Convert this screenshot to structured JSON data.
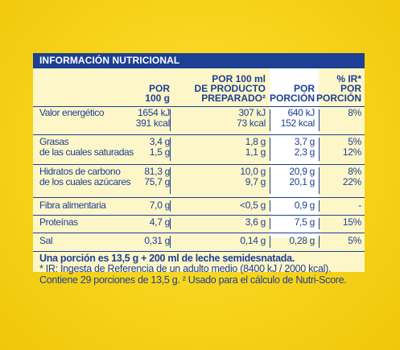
{
  "header": {
    "title": "INFORMACIÓN NUTRICIONAL"
  },
  "columns": {
    "per100g": [
      "POR",
      "100 g"
    ],
    "prepared": [
      "POR 100 ml",
      "DE PRODUCTO",
      "PREPARADO²"
    ],
    "portion": [
      "POR",
      "PORCIÓN"
    ],
    "ir": [
      "% IR*",
      "POR",
      "PORCIÓN"
    ]
  },
  "rows": [
    {
      "names": [
        "Valor energético"
      ],
      "per100g": [
        "1654 kJ",
        "391 kcal"
      ],
      "prepared": [
        "307 kJ",
        "73 kcal"
      ],
      "portion": [
        "640 kJ",
        "152 kcal"
      ],
      "ir": [
        "8%"
      ]
    },
    {
      "names": [
        "Grasas",
        "de las cuales saturadas"
      ],
      "per100g": [
        "3,4 g",
        "1,5 g"
      ],
      "prepared": [
        "1,8 g",
        "1,1 g"
      ],
      "portion": [
        "3,7 g",
        "2,3 g"
      ],
      "ir": [
        "5%",
        "12%"
      ]
    },
    {
      "names": [
        "Hidratos de carbono",
        "de los cuales azúcares"
      ],
      "per100g": [
        "81,3 g",
        "75,7 g"
      ],
      "prepared": [
        "10,0 g",
        "9,7 g"
      ],
      "portion": [
        "20,9 g",
        "20,1 g"
      ],
      "ir": [
        "8%",
        "22%"
      ]
    },
    {
      "names": [
        "Fibra alimentaria"
      ],
      "per100g": [
        "7,0 g"
      ],
      "prepared": [
        "<0,5 g"
      ],
      "portion": [
        "0,9 g"
      ],
      "ir": [
        "-"
      ]
    },
    {
      "names": [
        "Proteínas"
      ],
      "per100g": [
        "4,7 g"
      ],
      "prepared": [
        "3,6 g"
      ],
      "portion": [
        "7,5 g"
      ],
      "ir": [
        "15%"
      ]
    },
    {
      "names": [
        "Sal"
      ],
      "per100g": [
        "0,31 g"
      ],
      "prepared": [
        "0,14 g"
      ],
      "portion": [
        "0,28 g"
      ],
      "ir": [
        "5%"
      ]
    }
  ],
  "footer": {
    "line1": "Una porción es 13,5 g + 200 ml de leche semidesnatada.",
    "line2": "* IR: Ingesta de Referencia de un adulto medio (8400 kJ / 2000 kcal).",
    "line3": "Contiene 29 porciones de 13,5 g. ² Usado para el cálculo de Nutri-Score."
  }
}
